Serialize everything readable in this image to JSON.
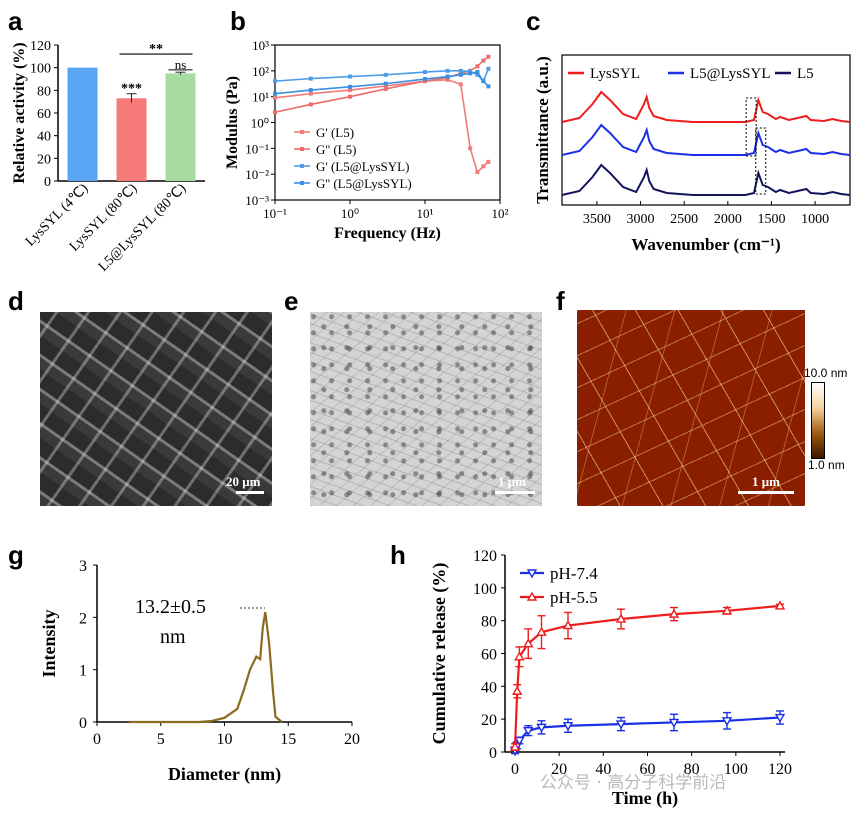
{
  "panels": {
    "a": "a",
    "b": "b",
    "c": "c",
    "d": "d",
    "e": "e",
    "f": "f",
    "g": "g",
    "h": "h"
  },
  "scalebars": {
    "d": "20 μm",
    "e": "1 μm",
    "f": "1 μm"
  },
  "afm_colorbar": {
    "max": "10.0 nm",
    "min": "1.0 nm"
  },
  "watermark": "公众号 · 高分子科学前沿",
  "chart_data": [
    {
      "id": "a",
      "type": "bar",
      "ylabel": "Relative activity (%)",
      "ylim": [
        0,
        120
      ],
      "yticks": [
        "0",
        "20",
        "40",
        "60",
        "80",
        "100",
        "120"
      ],
      "categories": [
        "LysSYL (4℃)",
        "LysSYL (80℃)",
        "L5@LysSYL (80℃)"
      ],
      "values": [
        100,
        73,
        95
      ],
      "errors": [
        0,
        4,
        1
      ],
      "colors": [
        "#5aa6f4",
        "#f57a78",
        "#a8dba2"
      ],
      "annotations": {
        "bar2": "***",
        "bracket": "**",
        "bar3": "ns"
      }
    },
    {
      "id": "b",
      "type": "line",
      "xlabel": "Frequency (Hz)",
      "ylabel": "Modulus (Pa)",
      "xscale": "log",
      "yscale": "log",
      "xlim": [
        0.1,
        100
      ],
      "ylim": [
        0.001,
        1000
      ],
      "xticks": [
        "10⁻¹",
        "10⁰",
        "10¹",
        "10²"
      ],
      "yticks": [
        "10⁻³",
        "10⁻²",
        "10⁻¹",
        "10⁰",
        "10¹",
        "10²",
        "10³"
      ],
      "legend_position": "bottom",
      "series": [
        {
          "name": "G' (L5)",
          "color": "#f07c7a",
          "x": [
            0.1,
            0.3,
            1,
            3,
            10,
            20,
            30,
            40,
            50,
            60,
            70
          ],
          "y": [
            9,
            13,
            18,
            26,
            40,
            45,
            30,
            0.1,
            0.012,
            0.02,
            0.03
          ]
        },
        {
          "name": "G'' (L5)",
          "color": "#ec6b6b",
          "x": [
            0.1,
            0.3,
            1,
            3,
            10,
            20,
            30,
            40,
            50,
            60,
            70
          ],
          "y": [
            2.5,
            5,
            10,
            20,
            40,
            55,
            80,
            100,
            150,
            250,
            350
          ]
        },
        {
          "name": "G' (L5@LysSYL)",
          "color": "#4f9de8",
          "x": [
            0.1,
            0.3,
            1,
            3,
            10,
            20,
            30,
            40,
            50,
            60,
            70
          ],
          "y": [
            40,
            50,
            60,
            70,
            90,
            100,
            100,
            95,
            70,
            40,
            120
          ]
        },
        {
          "name": "G'' (L5@LysSYL)",
          "color": "#3b8fe0",
          "x": [
            0.1,
            0.3,
            1,
            3,
            10,
            20,
            30,
            40,
            50,
            60,
            70
          ],
          "y": [
            13,
            18,
            24,
            32,
            48,
            60,
            70,
            80,
            90,
            40,
            25
          ]
        }
      ]
    },
    {
      "id": "c",
      "type": "line",
      "xlabel": "Wavenumber (cm⁻¹)",
      "ylabel": "Transmittance (a.u.)",
      "xlim": [
        3900,
        600
      ],
      "xticks": [
        "3500",
        "3000",
        "2500",
        "2000",
        "1500",
        "1000"
      ],
      "legend_position": "top",
      "series": [
        {
          "name": "LysSYL",
          "color": "#ee1c1c"
        },
        {
          "name": "L5@LysSYL",
          "color": "#1b2fe6"
        },
        {
          "name": "L5",
          "color": "#13145c"
        }
      ]
    },
    {
      "id": "g",
      "type": "line",
      "xlabel": "Diameter (nm)",
      "ylabel": "Intensity",
      "xlim": [
        0,
        20
      ],
      "ylim": [
        0,
        3
      ],
      "xticks": [
        "0",
        "5",
        "10",
        "15",
        "20"
      ],
      "yticks": [
        "0",
        "1",
        "2",
        "3"
      ],
      "annotation_value": "13.2±0.5",
      "annotation_unit": "nm",
      "series": [
        {
          "color": "#8c6a20",
          "x": [
            2.5,
            8,
            9,
            10,
            11,
            11.5,
            12,
            12.5,
            12.8,
            13,
            13.2,
            13.5,
            13.8,
            14,
            14.5
          ],
          "y": [
            0,
            0,
            0.02,
            0.08,
            0.25,
            0.6,
            1.0,
            1.25,
            1.2,
            1.8,
            2.1,
            1.5,
            0.6,
            0.1,
            0
          ]
        }
      ]
    },
    {
      "id": "h",
      "type": "line",
      "xlabel": "Time (h)",
      "ylabel": "Cumulative release (%)",
      "xlim": [
        0,
        120
      ],
      "ylim": [
        0,
        120
      ],
      "xticks": [
        "0",
        "20",
        "40",
        "60",
        "80",
        "100",
        "120"
      ],
      "yticks": [
        "0",
        "20",
        "40",
        "60",
        "80",
        "100",
        "120"
      ],
      "legend_position": "top-left",
      "series": [
        {
          "name": "pH-7.4",
          "color": "#1b2fe6",
          "marker": "triangle-down",
          "x": [
            0,
            1,
            2,
            6,
            12,
            24,
            48,
            72,
            96,
            120
          ],
          "y": [
            1,
            4,
            7,
            13,
            15,
            16,
            17,
            18,
            19,
            21
          ],
          "err": [
            2,
            2,
            2,
            3,
            4,
            4,
            4,
            5,
            5,
            4
          ]
        },
        {
          "name": "pH-5.5",
          "color": "#ee1c1c",
          "marker": "triangle-up",
          "x": [
            0,
            1,
            2,
            6,
            12,
            24,
            48,
            72,
            96,
            120
          ],
          "y": [
            3,
            37,
            58,
            66,
            73,
            77,
            81,
            84,
            86,
            89
          ],
          "err": [
            2,
            4,
            6,
            9,
            10,
            8,
            6,
            4,
            2,
            1
          ]
        }
      ]
    }
  ]
}
